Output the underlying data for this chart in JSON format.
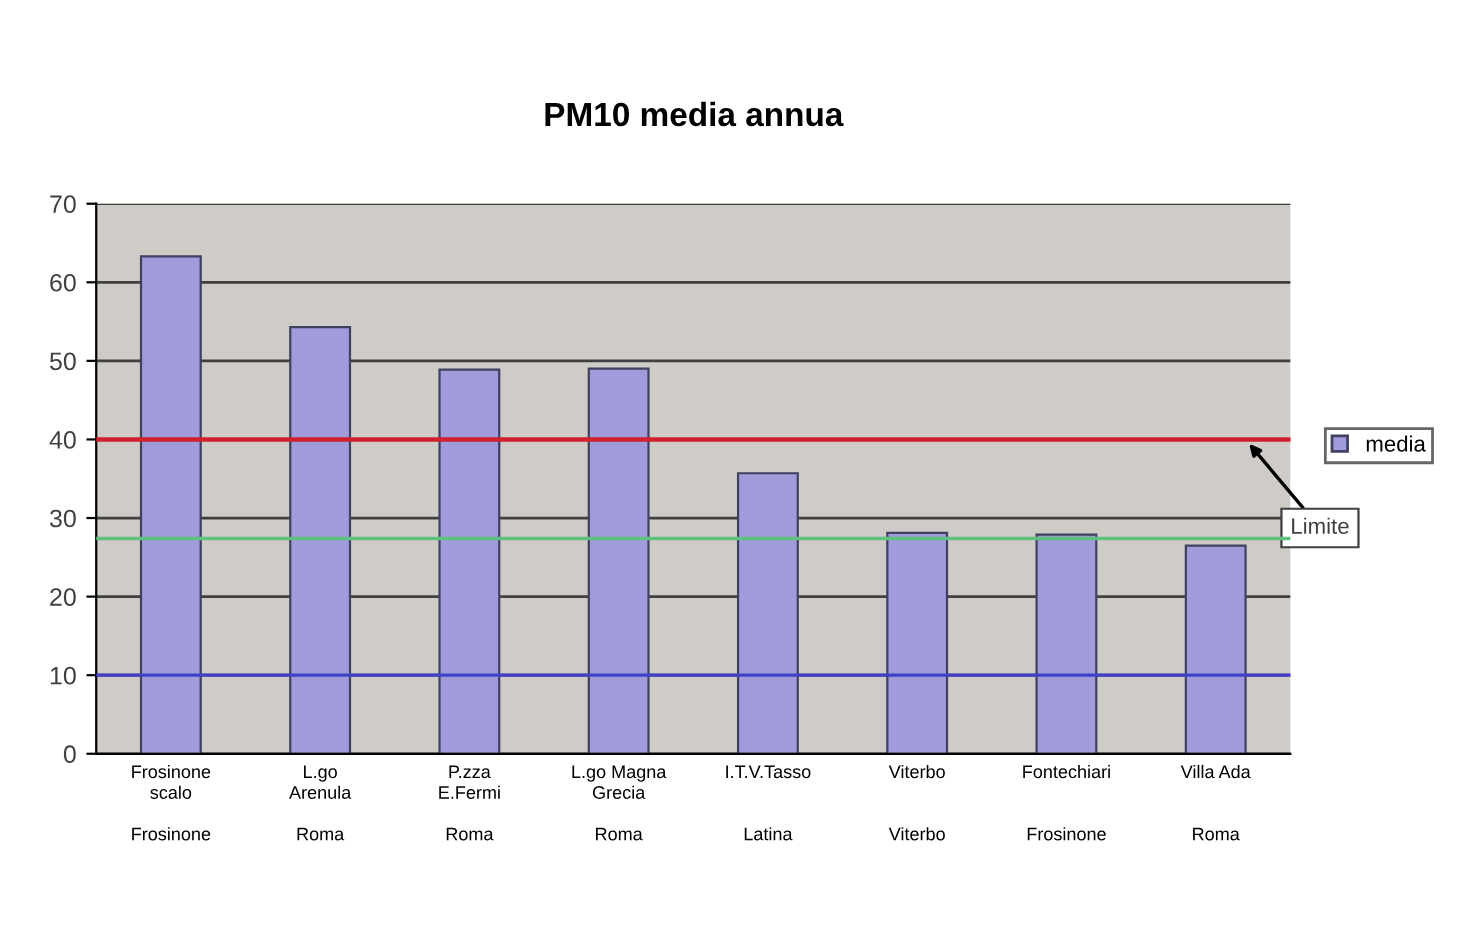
{
  "chart_data": {
    "type": "bar",
    "title": "PM10 media annua",
    "categories": [
      "Frosinone\nscalo\n\nFrosinone",
      "L.go\nArenula\n\nRoma",
      "P.zza\nE.Fermi\n\nRoma",
      "L.go Magna\nGrecia\n\nRoma",
      "I.T.V.Tasso\n\n\nLatina",
      "Viterbo\n\n\nViterbo",
      "Fontechiari\n\n\nFrosinone",
      "Villa Ada\n\n\nRoma"
    ],
    "series": [
      {
        "name": "media",
        "color": "#a09cdc",
        "values": [
          63.3,
          54.3,
          48.9,
          49,
          35.7,
          28.1,
          27.9,
          26.5
        ]
      }
    ],
    "ylim": [
      0,
      70
    ],
    "yticks": [
      0,
      10,
      20,
      30,
      40,
      50,
      60,
      70
    ],
    "grid": "y",
    "legend": "right",
    "ref_lines": [
      {
        "axis": "y",
        "value": 40,
        "label": "Limite",
        "color": "#d0202c"
      },
      {
        "axis": "y",
        "value": 27.4,
        "color": "#60c080"
      },
      {
        "axis": "y",
        "value": 10,
        "color": "#4040c8"
      }
    ]
  }
}
